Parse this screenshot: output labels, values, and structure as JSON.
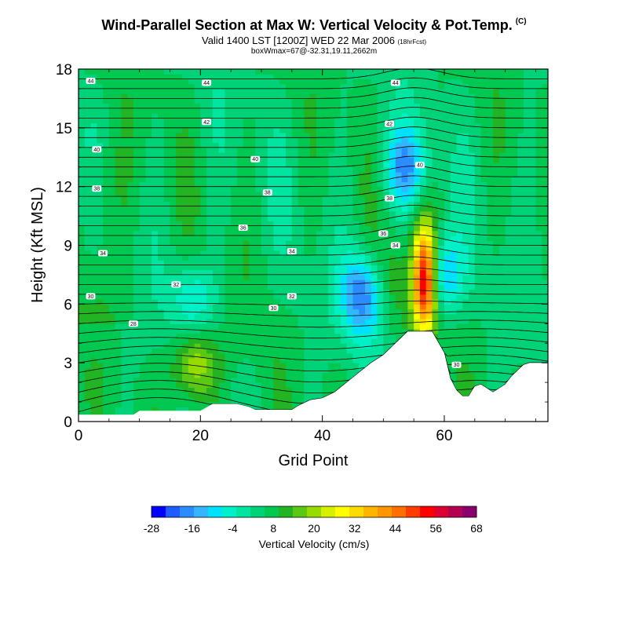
{
  "header": {
    "title": "Wind-Parallel Section at Max W: Vertical Velocity & Pot.Temp.",
    "copyright": "(C)",
    "valid": "Valid 1400 LST [1200Z] WED 22 Mar 2006",
    "forecast": "(18hrFcst)",
    "box": "boxWmax=67@-32.31,19.11,2662m"
  },
  "chart_data": {
    "type": "heatmap",
    "xlabel": "Grid Point",
    "ylabel": "Height (Kft MSL)",
    "xlim": [
      0,
      77
    ],
    "ylim": [
      0,
      18
    ],
    "x_ticks": [
      "0",
      "20",
      "40",
      "60"
    ],
    "y_ticks": [
      "0",
      "3",
      "6",
      "9",
      "12",
      "15",
      "18"
    ],
    "grid": false,
    "colorbar": {
      "label": "Vertical Velocity (cm/s)",
      "tick_labels": [
        "-28",
        "-16",
        "-4",
        "8",
        "20",
        "32",
        "44",
        "56",
        "68"
      ],
      "colors": [
        "#0000ff",
        "#1f5cff",
        "#2b8cff",
        "#33b5ff",
        "#00e1ff",
        "#00f0c8",
        "#00e6a0",
        "#00d278",
        "#00c850",
        "#23b423",
        "#5ac814",
        "#96dc00",
        "#d7f000",
        "#ffff00",
        "#ffdc00",
        "#ffb400",
        "#ff9600",
        "#ff6e00",
        "#ff3c00",
        "#ff0000",
        "#dc0032",
        "#b40050",
        "#8c006e"
      ]
    },
    "terrain": [
      [
        0,
        0.35
      ],
      [
        9,
        0.35
      ],
      [
        10,
        0.55
      ],
      [
        20,
        0.55
      ],
      [
        22,
        0.9
      ],
      [
        26,
        0.9
      ],
      [
        28,
        0.75
      ],
      [
        29,
        0.6
      ],
      [
        35,
        0.6
      ],
      [
        36,
        0.8
      ],
      [
        38,
        1.1
      ],
      [
        40,
        1.2
      ],
      [
        42,
        1.5
      ],
      [
        44,
        2.0
      ],
      [
        46,
        2.5
      ],
      [
        48,
        3.0
      ],
      [
        50,
        3.4
      ],
      [
        52,
        4.0
      ],
      [
        54,
        4.6
      ],
      [
        58,
        4.6
      ],
      [
        60,
        3.5
      ],
      [
        61,
        2.2
      ],
      [
        62,
        1.6
      ],
      [
        63,
        1.3
      ],
      [
        64,
        1.3
      ],
      [
        65,
        1.8
      ],
      [
        66,
        1.9
      ],
      [
        67,
        1.7
      ],
      [
        68,
        1.5
      ],
      [
        70,
        1.9
      ],
      [
        71,
        2.3
      ],
      [
        72,
        2.6
      ],
      [
        73,
        2.9
      ],
      [
        74,
        3.0
      ],
      [
        77,
        3.0
      ]
    ],
    "w_features": [
      {
        "x": 56.8,
        "y": 7.3,
        "w": 68
      },
      {
        "x": 19.0,
        "y": 3.0,
        "w": 26
      },
      {
        "x": 51.5,
        "y": 7.0,
        "w": 14
      },
      {
        "x": 46.8,
        "y": 6.5,
        "w": -24
      },
      {
        "x": 59.2,
        "y": 7.5,
        "w": -20
      },
      {
        "x": 19.0,
        "y": 6.0,
        "w": -12
      },
      {
        "x": 53.5,
        "y": 13.0,
        "w": -18
      }
    ],
    "theta_labels": [
      {
        "x": 2,
        "y": 17.4,
        "v": "44"
      },
      {
        "x": 21,
        "y": 17.3,
        "v": "44"
      },
      {
        "x": 52,
        "y": 17.3,
        "v": "44"
      },
      {
        "x": 21,
        "y": 15.3,
        "v": "42"
      },
      {
        "x": 51,
        "y": 15.2,
        "v": "42"
      },
      {
        "x": 3,
        "y": 13.9,
        "v": "40"
      },
      {
        "x": 29,
        "y": 13.4,
        "v": "40"
      },
      {
        "x": 56,
        "y": 13.1,
        "v": "40"
      },
      {
        "x": 3,
        "y": 11.9,
        "v": "38"
      },
      {
        "x": 31,
        "y": 11.7,
        "v": "38"
      },
      {
        "x": 51,
        "y": 11.4,
        "v": "38"
      },
      {
        "x": 27,
        "y": 9.9,
        "v": "36"
      },
      {
        "x": 50,
        "y": 9.6,
        "v": "36"
      },
      {
        "x": 4,
        "y": 8.6,
        "v": "34"
      },
      {
        "x": 35,
        "y": 8.7,
        "v": "34"
      },
      {
        "x": 52,
        "y": 9.0,
        "v": "34"
      },
      {
        "x": 16,
        "y": 7.0,
        "v": "32"
      },
      {
        "x": 35,
        "y": 6.4,
        "v": "32"
      },
      {
        "x": 2,
        "y": 6.4,
        "v": "30"
      },
      {
        "x": 32,
        "y": 5.8,
        "v": "30"
      },
      {
        "x": 9,
        "y": 5.0,
        "v": "28"
      },
      {
        "x": 62,
        "y": 2.9,
        "v": "30"
      }
    ]
  }
}
